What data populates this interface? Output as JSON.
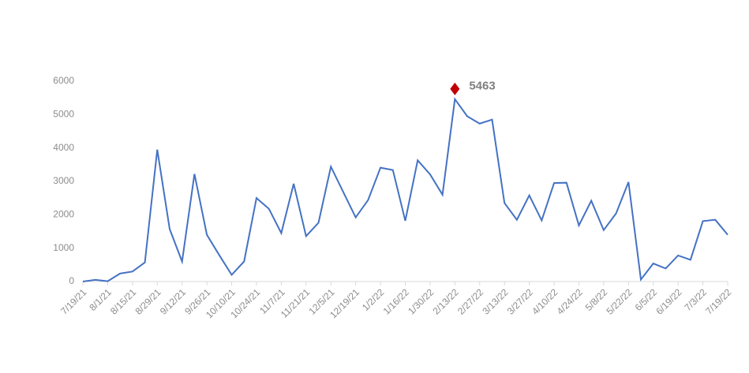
{
  "chart_data": {
    "type": "line",
    "categories": [
      "7/19/21",
      null,
      "8/1/21",
      null,
      "8/15/21",
      null,
      "8/29/21",
      null,
      "9/12/21",
      null,
      "9/26/21",
      null,
      "10/10/21",
      null,
      "10/24/21",
      null,
      "11/7/21",
      null,
      "11/21/21",
      null,
      "12/5/21",
      null,
      "12/19/21",
      null,
      "1/2/22",
      null,
      "1/16/22",
      null,
      "1/30/22",
      null,
      "2/13/22",
      null,
      "2/27/22",
      null,
      "3/13/22",
      null,
      "3/27/22",
      null,
      "4/10/22",
      null,
      "4/24/22",
      null,
      "5/8/22",
      null,
      "5/22/22",
      null,
      "6/5/22",
      null,
      "6/19/22",
      null,
      "7/3/22",
      null,
      "7/19/22"
    ],
    "series": [
      {
        "color": "#4472c4",
        "values": [
          0,
          50,
          10,
          240,
          300,
          570,
          3950,
          1570,
          600,
          3220,
          1400,
          790,
          200,
          600,
          2500,
          2180,
          1450,
          2930,
          1360,
          1760,
          3440,
          2680,
          1920,
          2440,
          3410,
          3340,
          1820,
          3630,
          3210,
          2600,
          5463,
          4950,
          4730,
          4850,
          2350,
          1850,
          2580,
          1830,
          2950,
          2960,
          1680,
          2420,
          1540,
          2040,
          2980,
          60,
          540,
          390,
          780,
          650,
          1810,
          1850,
          1400
        ]
      }
    ],
    "highlight_color": "#c00000",
    "ylim": [
      0,
      6000
    ],
    "yticks": [
      0,
      1000,
      2000,
      3000,
      4000,
      5000,
      6000
    ],
    "grid": false
  }
}
